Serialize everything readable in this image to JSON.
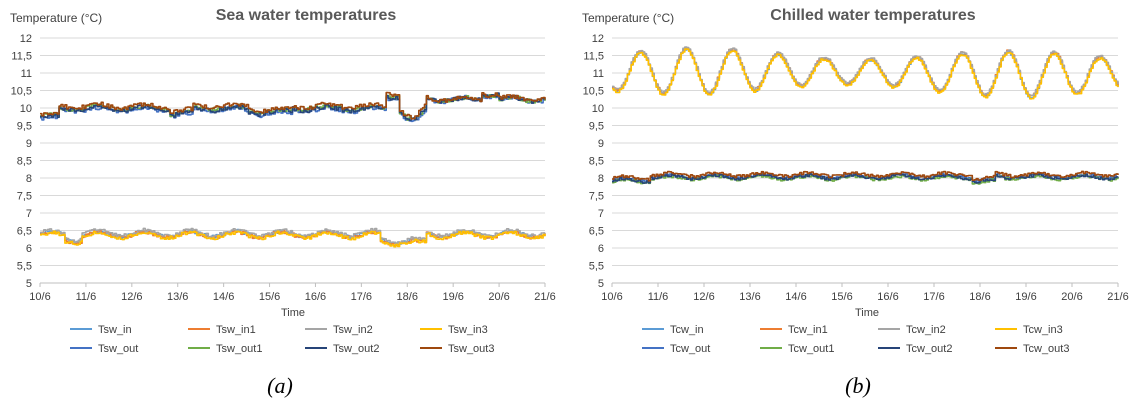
{
  "chart_data": [
    {
      "type": "line",
      "title": "Sea water temperatures",
      "ylabel": "Temperature (°C)",
      "xlabel": "Time",
      "caption": "(a)",
      "ylim": [
        5,
        12
      ],
      "yticks": [
        "5",
        "5,5",
        "6",
        "6,5",
        "7",
        "7,5",
        "8",
        "8,5",
        "9",
        "9,5",
        "10",
        "10,5",
        "11",
        "11,5",
        "12"
      ],
      "x_categories": [
        "10/6",
        "11/6",
        "12/6",
        "13/6",
        "14/6",
        "15/6",
        "16/6",
        "17/6",
        "18/6",
        "19/6",
        "20/6",
        "21/6"
      ],
      "grid": "horizontal",
      "legend_position": "bottom",
      "series": [
        {
          "name": "Tsw_in",
          "color": "#5B9BD5",
          "base": 6.45,
          "shape": "low",
          "offset": 0.0,
          "noise": 0.05
        },
        {
          "name": "Tsw_in1",
          "color": "#ED7D31",
          "base": 6.42,
          "shape": "low",
          "offset": -0.02,
          "noise": 0.05
        },
        {
          "name": "Tsw_in2",
          "color": "#A5A5A5",
          "base": 6.48,
          "shape": "low",
          "offset": 0.03,
          "noise": 0.05
        },
        {
          "name": "Tsw_in3",
          "color": "#FFC000",
          "base": 6.4,
          "shape": "low",
          "offset": -0.04,
          "noise": 0.05
        },
        {
          "name": "Tsw_out",
          "color": "#4472C4",
          "base": 9.95,
          "shape": "high",
          "offset": -0.05,
          "noise": 0.06
        },
        {
          "name": "Tsw_out1",
          "color": "#70AD47",
          "base": 10.0,
          "shape": "high",
          "offset": 0.0,
          "noise": 0.06
        },
        {
          "name": "Tsw_out2",
          "color": "#264478",
          "base": 9.98,
          "shape": "high",
          "offset": -0.02,
          "noise": 0.06
        },
        {
          "name": "Tsw_out3",
          "color": "#9E480E",
          "base": 10.08,
          "shape": "high",
          "offset": 0.06,
          "noise": 0.06
        }
      ]
    },
    {
      "type": "line",
      "title": "Chilled water temperatures",
      "ylabel": "Temperature (°C)",
      "xlabel": "Time",
      "caption": "(b)",
      "ylim": [
        5,
        12
      ],
      "yticks": [
        "5",
        "5,5",
        "6",
        "6,5",
        "7",
        "7,5",
        "8",
        "8,5",
        "9",
        "9,5",
        "10",
        "10,5",
        "11",
        "11,5",
        "12"
      ],
      "x_categories": [
        "10/6",
        "11/6",
        "12/6",
        "13/6",
        "14/6",
        "15/6",
        "16/6",
        "17/6",
        "18/6",
        "19/6",
        "20/6",
        "21/6"
      ],
      "grid": "horizontal",
      "legend_position": "bottom",
      "series": [
        {
          "name": "Tcw_in",
          "color": "#5B9BD5",
          "shape": "osc",
          "offset": 0.0,
          "noise": 0.03
        },
        {
          "name": "Tcw_in1",
          "color": "#ED7D31",
          "shape": "osc",
          "offset": 0.03,
          "noise": 0.03
        },
        {
          "name": "Tcw_in2",
          "color": "#A5A5A5",
          "shape": "osc",
          "offset": 0.05,
          "noise": 0.03
        },
        {
          "name": "Tcw_in3",
          "color": "#FFC000",
          "shape": "osc",
          "offset": -0.02,
          "noise": 0.03
        },
        {
          "name": "Tcw_out",
          "color": "#4472C4",
          "shape": "flat",
          "offset": 0.0,
          "noise": 0.04
        },
        {
          "name": "Tcw_out1",
          "color": "#70AD47",
          "shape": "flat",
          "offset": -0.05,
          "noise": 0.04
        },
        {
          "name": "Tcw_out2",
          "color": "#264478",
          "shape": "flat",
          "offset": -0.02,
          "noise": 0.04
        },
        {
          "name": "Tcw_out3",
          "color": "#9E480E",
          "shape": "flat",
          "offset": 0.05,
          "noise": 0.04
        }
      ]
    }
  ]
}
